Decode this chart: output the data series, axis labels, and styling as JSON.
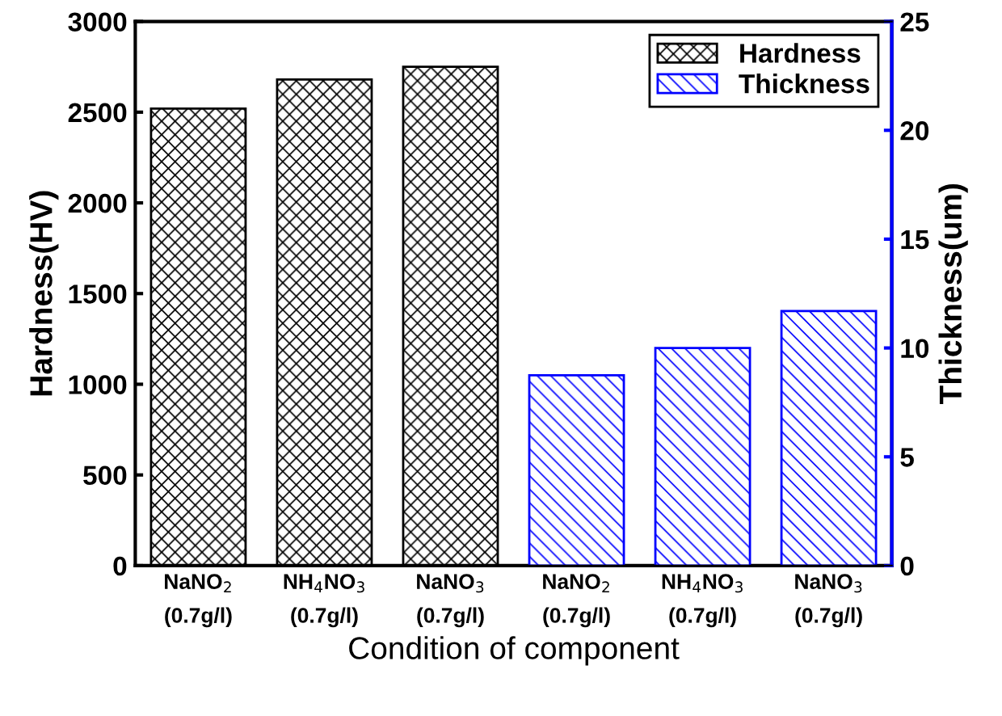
{
  "chart_data": {
    "type": "bar",
    "xlabel": "Condition of component",
    "ylabel": "Hardness(HV)",
    "y2label": "Thickness(um)",
    "categories": [
      "NaNO$_{2}$\n(0.7g/l)",
      "NH$_{4}$NO$_{3}$\n(0.7g/l)",
      "NaNO$_{3}$\n(0.7g/l)",
      "NaNO$_{2}$\n(0.7g/l)",
      "NH$_{4}$NO$_{3}$\n(0.7g/l)",
      "NaNO$_{3}$\n(0.7g/l)"
    ],
    "series": [
      {
        "name": "Hardness",
        "color": "#000000",
        "values": [
          2520,
          2680,
          2750,
          null,
          null,
          null
        ]
      },
      {
        "name": "Thickness",
        "color": "#0000ff",
        "axis": "y2",
        "values": [
          null,
          null,
          null,
          8.75,
          10.0,
          11.7
        ]
      }
    ],
    "ylim": [
      0,
      3000
    ],
    "yticks": [
      0,
      500,
      1000,
      1500,
      2000,
      2500,
      3000
    ],
    "y2lim": [
      0,
      25
    ],
    "y2ticks": [
      0,
      5,
      10,
      15,
      20,
      25
    ],
    "legend": "top right",
    "grid": false
  }
}
